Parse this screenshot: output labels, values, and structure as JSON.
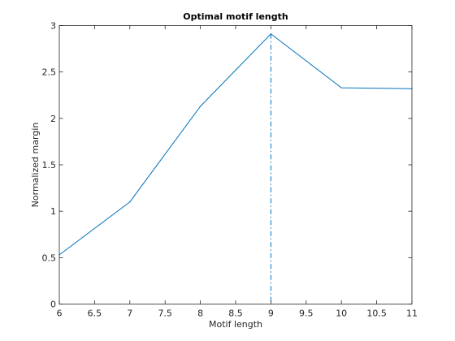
{
  "chart_data": {
    "type": "line",
    "title": "Optimal motif length",
    "xlabel": "Motif length",
    "ylabel": "Normalized margin",
    "xlim": [
      6,
      11
    ],
    "ylim": [
      0,
      3
    ],
    "xticks": [
      6,
      6.5,
      7,
      7.5,
      8,
      8.5,
      9,
      9.5,
      10,
      10.5,
      11
    ],
    "xtick_labels": [
      "6",
      "6.5",
      "7",
      "7.5",
      "8",
      "8.5",
      "9",
      "9.5",
      "10",
      "10.5",
      "11"
    ],
    "yticks": [
      0,
      0.5,
      1,
      1.5,
      2,
      2.5,
      3
    ],
    "ytick_labels": [
      "0",
      "0.5",
      "1",
      "1.5",
      "2",
      "2.5",
      "3"
    ],
    "grid": false,
    "series": [
      {
        "x": [
          6,
          7,
          8,
          9,
          10,
          11
        ],
        "y": [
          0.53,
          1.1,
          2.13,
          2.91,
          2.33,
          2.32
        ],
        "color": "#0072bd",
        "style": "solid"
      }
    ],
    "vertical_marker": {
      "x": 9,
      "color": "#0072bd",
      "style": "dash-dot"
    }
  }
}
